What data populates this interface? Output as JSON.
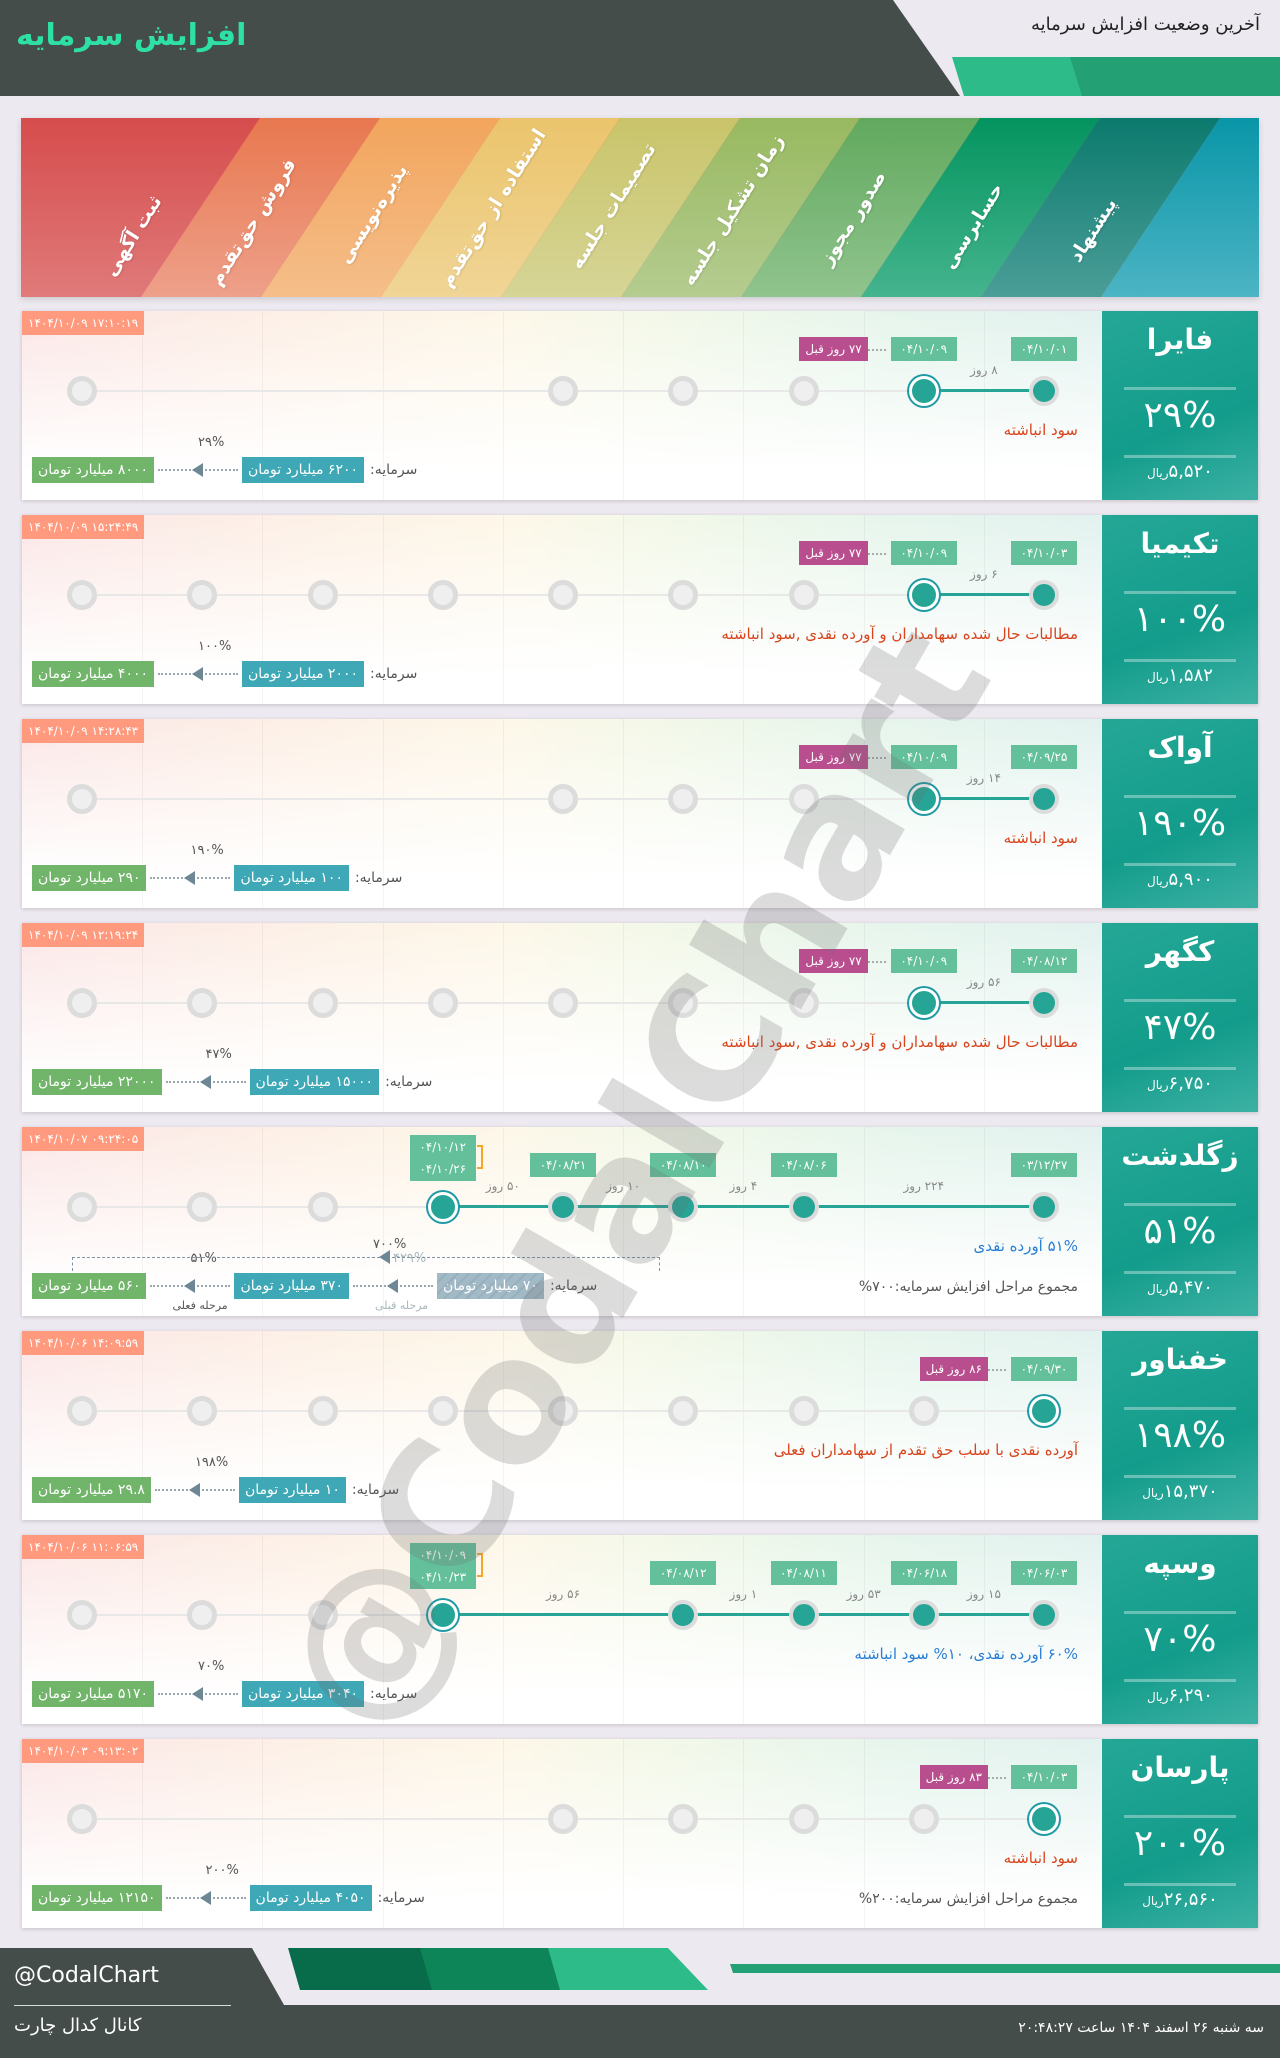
{
  "header": {
    "title": "افزایش سرمایه",
    "subtitle": "آخرین وضعیت افزایش سرمایه"
  },
  "stages": [
    "ثبت آگهی",
    "فروش حق‌تقدم",
    "پذیره‌نویسی",
    "استفاده از حق‌تقدم",
    "تصمیمات جلسه",
    "زمان تشکیل جلسه",
    "صدور مجوز",
    "حسابرسی",
    "پیشنهاد"
  ],
  "colors": {
    "accent": "#26a596",
    "timestamp": "#ff9a7e",
    "date_badge": "#63c09b",
    "ago_badge": "#b94e8f",
    "desc_red": "#d9441c",
    "desc_blue": "#2a7fd4",
    "to_box": "#70b56a",
    "from_box": "#3ea8b6"
  },
  "capital_label": "سرمایه:",
  "currency": "ریال",
  "cards": [
    {
      "name": "فایرا",
      "change_pct": "۲۹%",
      "price": "۵,۵۲۰",
      "timestamp": "۱۴۰۴/۱۰/۰۹ ۱۷:۱۰:۱۹",
      "stages": [
        "gray",
        "hidden",
        "hidden",
        "hidden",
        "gray",
        "gray",
        "gray",
        "current",
        "done"
      ],
      "dates": [
        {
          "stage": 8,
          "text": "۰۴/۱۰/۰۱"
        },
        {
          "stage": 7,
          "text": "۰۴/۱۰/۰۹"
        }
      ],
      "days": [
        {
          "from": 7,
          "to": 8,
          "text": "۸ روز"
        }
      ],
      "ago": "۷۷ روز قبل",
      "desc": "سود انباشته",
      "desc_color": "red",
      "capital": {
        "from": "۶۲۰۰ میلیارد تومان",
        "to": "۸۰۰۰ میلیارد تومان",
        "pct": "۲۹%"
      }
    },
    {
      "name": "تکیمیا",
      "change_pct": "۱۰۰%",
      "price": "۱,۵۸۲",
      "timestamp": "۱۴۰۴/۱۰/۰۹ ۱۵:۲۴:۴۹",
      "stages": [
        "gray",
        "gray",
        "gray",
        "gray",
        "gray",
        "gray",
        "gray",
        "current",
        "done"
      ],
      "dates": [
        {
          "stage": 8,
          "text": "۰۴/۱۰/۰۳"
        },
        {
          "stage": 7,
          "text": "۰۴/۱۰/۰۹"
        }
      ],
      "days": [
        {
          "from": 7,
          "to": 8,
          "text": "۶ روز"
        }
      ],
      "ago": "۷۷ روز قبل",
      "desc": "مطالبات حال شده سهامداران و آورده نقدی ,سود انباشته",
      "desc_color": "red",
      "capital": {
        "from": "۲۰۰۰ میلیارد تومان",
        "to": "۴۰۰۰ میلیارد تومان",
        "pct": "۱۰۰%"
      }
    },
    {
      "name": "آواک",
      "change_pct": "۱۹۰%",
      "price": "۵,۹۰۰",
      "timestamp": "۱۴۰۴/۱۰/۰۹ ۱۴:۲۸:۴۳",
      "stages": [
        "gray",
        "hidden",
        "hidden",
        "hidden",
        "gray",
        "gray",
        "gray",
        "current",
        "done"
      ],
      "dates": [
        {
          "stage": 8,
          "text": "۰۴/۰۹/۲۵"
        },
        {
          "stage": 7,
          "text": "۰۴/۱۰/۰۹"
        }
      ],
      "days": [
        {
          "from": 7,
          "to": 8,
          "text": "۱۴ روز"
        }
      ],
      "ago": "۷۷ روز قبل",
      "desc": "سود انباشته",
      "desc_color": "red",
      "capital": {
        "from": "۱۰۰ میلیارد تومان",
        "to": "۲۹۰ میلیارد تومان",
        "pct": "۱۹۰%"
      }
    },
    {
      "name": "کگهر",
      "change_pct": "۴۷%",
      "price": "۶,۷۵۰",
      "timestamp": "۱۴۰۴/۱۰/۰۹ ۱۲:۱۹:۲۴",
      "stages": [
        "gray",
        "gray",
        "gray",
        "gray",
        "gray",
        "gray",
        "gray",
        "current",
        "done"
      ],
      "dates": [
        {
          "stage": 8,
          "text": "۰۴/۰۸/۱۲"
        },
        {
          "stage": 7,
          "text": "۰۴/۱۰/۰۹"
        }
      ],
      "days": [
        {
          "from": 7,
          "to": 8,
          "text": "۵۶ روز"
        }
      ],
      "ago": "۷۷ روز قبل",
      "desc": "مطالبات حال شده سهامداران و آورده نقدی ,سود انباشته",
      "desc_color": "red",
      "capital": {
        "from": "۱۵۰۰۰ میلیارد تومان",
        "to": "۲۲۰۰۰ میلیارد تومان",
        "pct": "۴۷%"
      }
    },
    {
      "name": "زگلدشت",
      "change_pct": "۵۱%",
      "price": "۵,۴۷۰",
      "timestamp": "۱۴۰۴/۱۰/۰۷ ۰۹:۲۴:۰۵",
      "stages": [
        "gray",
        "gray",
        "gray",
        "current",
        "done",
        "done",
        "done",
        "hidden",
        "done"
      ],
      "dates": [
        {
          "stage": 8,
          "text": "۰۳/۱۲/۲۷"
        },
        {
          "stage": 6,
          "text": "۰۴/۰۸/۰۶"
        },
        {
          "stage": 5,
          "text": "۰۴/۰۸/۱۰"
        },
        {
          "stage": 4,
          "text": "۰۴/۰۸/۲۱"
        },
        {
          "stage": 3,
          "text": "۰۴/۱۰/۱۲",
          "text2": "۰۴/۱۰/۲۶"
        }
      ],
      "days": [
        {
          "from": 6,
          "to": 8,
          "text": "۲۲۴ روز"
        },
        {
          "from": 5,
          "to": 6,
          "text": "۴ روز"
        },
        {
          "from": 4,
          "to": 5,
          "text": "۱۰ روز"
        },
        {
          "from": 3,
          "to": 4,
          "text": "۵۰ روز"
        }
      ],
      "desc": "۵۱% آورده نقدی",
      "desc_color": "blue",
      "total": "مجموع مراحل افزایش سرمایه:۷۰۰%",
      "capital": {
        "from": "۳۷۰ میلیارد تومان",
        "to": "۵۶۰ میلیارد تومان",
        "pct": "۵۱%",
        "pct_label": "مرحله فعلی",
        "prev": "۷۰ میلیارد تومان",
        "prev_pct": "۴۲۹%",
        "prev_label": "مرحله قبلی",
        "overall_pct": "۷۰۰%"
      }
    },
    {
      "name": "خفناور",
      "change_pct": "۱۹۸%",
      "price": "۱۵,۳۷۰",
      "timestamp": "۱۴۰۴/۱۰/۰۶ ۱۴:۰۹:۵۹",
      "stages": [
        "gray",
        "gray",
        "gray",
        "gray",
        "gray",
        "gray",
        "gray",
        "gray",
        "current"
      ],
      "dates": [
        {
          "stage": 8,
          "text": "۰۴/۰۹/۳۰"
        }
      ],
      "days": [],
      "ago": "۸۶ روز قبل",
      "desc": "آورده نقدی با سلب حق تقدم از سهامداران فعلی",
      "desc_color": "red",
      "capital": {
        "from": "۱۰ میلیارد تومان",
        "to": "۲۹.۸ میلیارد تومان",
        "pct": "۱۹۸%"
      }
    },
    {
      "name": "وسپه",
      "change_pct": "۷۰%",
      "price": "۶,۲۹۰",
      "timestamp": "۱۴۰۴/۱۰/۰۶ ۱۱:۰۶:۵۹",
      "stages": [
        "gray",
        "gray",
        "gray",
        "current",
        "hidden",
        "done",
        "done",
        "done",
        "done"
      ],
      "dates": [
        {
          "stage": 8,
          "text": "۰۴/۰۶/۰۳"
        },
        {
          "stage": 7,
          "text": "۰۴/۰۶/۱۸"
        },
        {
          "stage": 6,
          "text": "۰۴/۰۸/۱۱"
        },
        {
          "stage": 5,
          "text": "۰۴/۰۸/۱۲"
        },
        {
          "stage": 3,
          "text": "۰۴/۱۰/۰۹",
          "text2": "۰۴/۱۰/۲۳"
        }
      ],
      "days": [
        {
          "from": 7,
          "to": 8,
          "text": "۱۵ روز"
        },
        {
          "from": 6,
          "to": 7,
          "text": "۵۳ روز"
        },
        {
          "from": 5,
          "to": 6,
          "text": "۱ روز"
        },
        {
          "from": 3,
          "to": 5,
          "text": "۵۶ روز"
        }
      ],
      "desc": "۶۰% آورده نقدی، ۱۰% سود انباشته",
      "desc_color": "blue",
      "capital": {
        "from": "۳۰۴۰ میلیارد تومان",
        "to": "۵۱۷۰ میلیارد تومان",
        "pct": "۷۰%"
      }
    },
    {
      "name": "پارسان",
      "change_pct": "۲۰۰%",
      "price": "۲۶,۵۶۰",
      "timestamp": "۱۴۰۴/۱۰/۰۳ ۰۹:۱۳:۰۲",
      "stages": [
        "gray",
        "hidden",
        "hidden",
        "hidden",
        "gray",
        "gray",
        "gray",
        "gray",
        "current"
      ],
      "dates": [
        {
          "stage": 8,
          "text": "۰۴/۱۰/۰۳"
        }
      ],
      "days": [],
      "ago": "۸۳ روز قبل",
      "desc": "سود انباشته",
      "desc_color": "red",
      "total": "مجموع مراحل افزایش سرمایه:۲۰۰%",
      "capital": {
        "from": "۴۰۵۰ میلیارد تومان",
        "to": "۱۲۱۵۰ میلیارد تومان",
        "pct": "۲۰۰%"
      }
    }
  ],
  "watermark": "@CodalChart",
  "footer": {
    "handle": "@CodalChart",
    "channel": "کانال کدال چارت",
    "datetime": "سه شنبه ۲۶ اسفند ۱۴۰۴ ساعت ۲۰:۴۸:۲۷"
  }
}
